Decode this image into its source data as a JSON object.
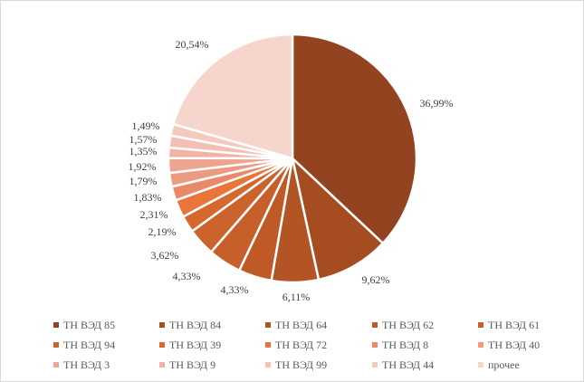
{
  "chart_data": {
    "type": "pie",
    "title": "",
    "start_angle": "12 o'clock, clockwise",
    "legend_position": "bottom",
    "slices": [
      {
        "name": "ТН ВЭД 85",
        "value": 36.99,
        "label": "36,99%",
        "color": "#934320"
      },
      {
        "name": "ТН ВЭД 84",
        "value": 9.62,
        "label": "9,62%",
        "color": "#a54c20"
      },
      {
        "name": "ТН ВЭД 64",
        "value": 6.11,
        "label": "6,11%",
        "color": "#b35424"
      },
      {
        "name": "ТН ВЭД 62",
        "value": 4.33,
        "label": "4,33%",
        "color": "#bf5a27"
      },
      {
        "name": "ТН ВЭД 61",
        "value": 4.33,
        "label": "4,33%",
        "color": "#c65f2a"
      },
      {
        "name": "ТН ВЭД 94",
        "value": 3.62,
        "label": "3,62%",
        "color": "#cc622c"
      },
      {
        "name": "ТН ВЭД 39",
        "value": 2.19,
        "label": "2,19%",
        "color": "#d6682e"
      },
      {
        "name": "ТН ВЭД 72",
        "value": 2.31,
        "label": "2,31%",
        "color": "#e8763a"
      },
      {
        "name": "ТН ВЭД 8",
        "value": 1.83,
        "label": "1,83%",
        "color": "#e9896a"
      },
      {
        "name": "ТН ВЭД 40",
        "value": 1.79,
        "label": "1,79%",
        "color": "#ec9a80"
      },
      {
        "name": "ТН ВЭД 3",
        "value": 1.92,
        "label": "1,92%",
        "color": "#eea58f"
      },
      {
        "name": "ТН ВЭД 9",
        "value": 1.35,
        "label": "1,35%",
        "color": "#f1b3a3"
      },
      {
        "name": "ТН ВЭД 99",
        "value": 1.57,
        "label": "1,57%",
        "color": "#f3bfb2"
      },
      {
        "name": "ТН ВЭД 44",
        "value": 1.49,
        "label": "1,49%",
        "color": "#f5c9bd"
      },
      {
        "name": "прочее",
        "value": 20.54,
        "label": "20,54%",
        "color": "#f6d5cd"
      }
    ]
  }
}
